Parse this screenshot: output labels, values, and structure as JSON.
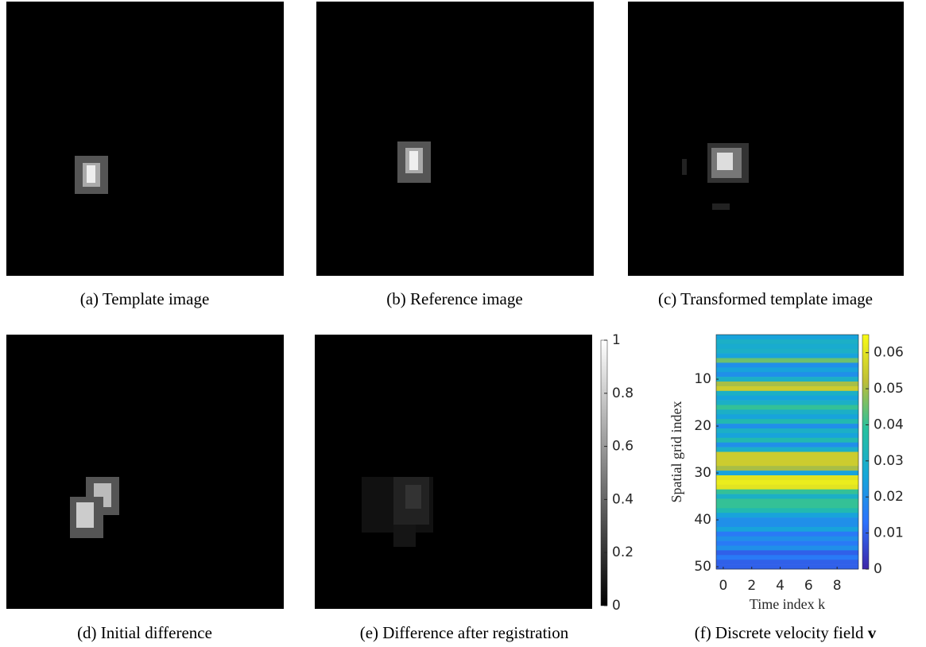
{
  "captions": [
    "(a) Template image",
    "(b) Reference image",
    "(c) Transformed template image",
    "(d) Initial difference",
    "(e) Difference after registration",
    "(f) Discrete velocity field"
  ],
  "velocity_symbol": "v",
  "gray_colorbar": {
    "lim": [
      0,
      1
    ],
    "ticks": [
      0,
      0.2,
      0.4,
      0.6,
      0.8,
      1
    ]
  },
  "chart_data": {
    "type": "heatmap",
    "xlabel": "Time index k",
    "ylabel": "Spatial grid index",
    "xlim": [
      -0.5,
      9.5
    ],
    "xticks": [
      0,
      2,
      4,
      6,
      8
    ],
    "ylim": [
      0.5,
      50.5
    ],
    "yticks": [
      10,
      20,
      30,
      40,
      50
    ],
    "values": [
      0.025,
      0.03,
      0.028,
      0.03,
      0.025,
      0.045,
      0.02,
      0.025,
      0.02,
      0.03,
      0.05,
      0.055,
      0.03,
      0.025,
      0.03,
      0.04,
      0.03,
      0.025,
      0.035,
      0.02,
      0.03,
      0.025,
      0.035,
      0.02,
      0.03,
      0.055,
      0.055,
      0.055,
      0.05,
      0.025,
      0.06,
      0.062,
      0.06,
      0.04,
      0.03,
      0.04,
      0.04,
      0.035,
      0.025,
      0.02,
      0.02,
      0.025,
      0.015,
      0.02,
      0.015,
      0.02,
      0.01,
      0.015,
      0.01,
      0.01
    ],
    "clim": [
      0,
      0.065
    ],
    "cticks": [
      0,
      0.01,
      0.02,
      0.03,
      0.04,
      0.05,
      0.06
    ]
  }
}
